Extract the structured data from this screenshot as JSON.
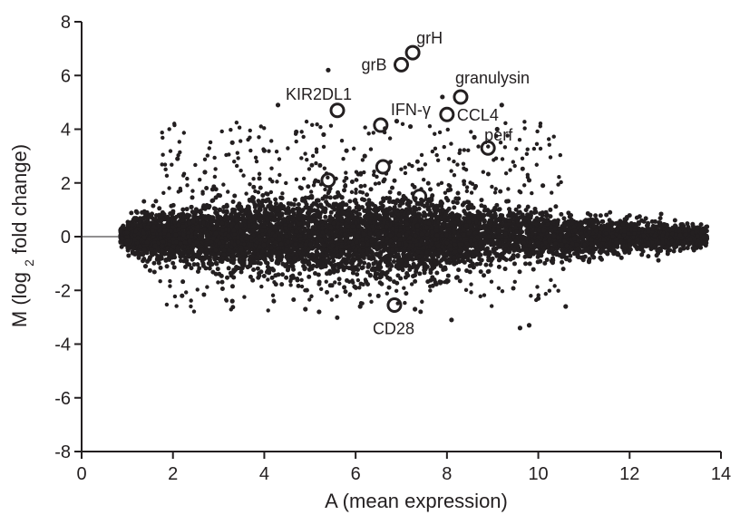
{
  "chart_data": {
    "type": "scatter",
    "title": "",
    "xlabel": "A (mean expression)",
    "ylabel_parts": {
      "prefix": "M (log",
      "subscript": "2",
      "suffix": " fold change)"
    },
    "xlim": [
      0,
      14
    ],
    "ylim": [
      -8,
      8
    ],
    "xticks": [
      0,
      2,
      4,
      6,
      8,
      10,
      12,
      14
    ],
    "yticks": [
      -8,
      -6,
      -4,
      -2,
      0,
      2,
      4,
      6,
      8
    ],
    "xtick_labels": [
      "0",
      "2",
      "4",
      "6",
      "8",
      "10",
      "12",
      "14"
    ],
    "ytick_labels": [
      "-8",
      "-6",
      "-4",
      "-2",
      "0",
      "2",
      "4",
      "6",
      "8"
    ],
    "grid": false,
    "legend": "none",
    "baseline": {
      "y": 0,
      "x_range": [
        0,
        0.9
      ]
    },
    "labeled_genes": [
      {
        "label": "grH",
        "x": 7.25,
        "y": 6.85
      },
      {
        "label": "grB",
        "x": 7.0,
        "y": 6.4
      },
      {
        "label": "granulysin",
        "x": 8.3,
        "y": 5.2
      },
      {
        "label": "KIR2DL1",
        "x": 5.6,
        "y": 4.7
      },
      {
        "label": "IFN-γ",
        "x": 6.55,
        "y": 4.15
      },
      {
        "label": "CCL4",
        "x": 8.0,
        "y": 4.55
      },
      {
        "label": "perf",
        "x": 8.9,
        "y": 3.3
      },
      {
        "label": "CD28",
        "x": 6.85,
        "y": -2.55
      }
    ],
    "unlabeled_circled_points": [
      {
        "x": 6.6,
        "y": 2.6
      },
      {
        "x": 5.4,
        "y": 2.1
      },
      {
        "x": 7.4,
        "y": 1.5
      }
    ],
    "outlier_points": [
      {
        "x": 5.4,
        "y": 6.2
      },
      {
        "x": 7.9,
        "y": 5.2
      },
      {
        "x": 9.2,
        "y": 4.9
      },
      {
        "x": 4.3,
        "y": 4.9
      },
      {
        "x": 8.6,
        "y": 3.7
      },
      {
        "x": 9.1,
        "y": 4.0
      },
      {
        "x": 4.7,
        "y": 3.9
      },
      {
        "x": 5.3,
        "y": 3.8
      },
      {
        "x": 6.9,
        "y": 4.3
      },
      {
        "x": 7.2,
        "y": 4.1
      },
      {
        "x": 3.3,
        "y": 3.5
      },
      {
        "x": 4.0,
        "y": 3.2
      },
      {
        "x": 9.8,
        "y": 2.1
      },
      {
        "x": 10.1,
        "y": 1.9
      },
      {
        "x": 2.1,
        "y": 2.9
      },
      {
        "x": 2.7,
        "y": 2.4
      },
      {
        "x": 5.8,
        "y": 3.2
      },
      {
        "x": 6.2,
        "y": 3.0
      },
      {
        "x": 9.6,
        "y": -3.4
      },
      {
        "x": 9.8,
        "y": -3.3
      },
      {
        "x": 8.1,
        "y": -3.1
      },
      {
        "x": 10.6,
        "y": -2.6
      },
      {
        "x": 10.0,
        "y": -2.3
      },
      {
        "x": 4.9,
        "y": -2.7
      },
      {
        "x": 5.2,
        "y": -2.8
      },
      {
        "x": 6.1,
        "y": -2.6
      },
      {
        "x": 7.3,
        "y": -2.7
      },
      {
        "x": 2.2,
        "y": -2.2
      },
      {
        "x": 1.4,
        "y": -1.1
      },
      {
        "x": 3.3,
        "y": -2.4
      }
    ]
  }
}
